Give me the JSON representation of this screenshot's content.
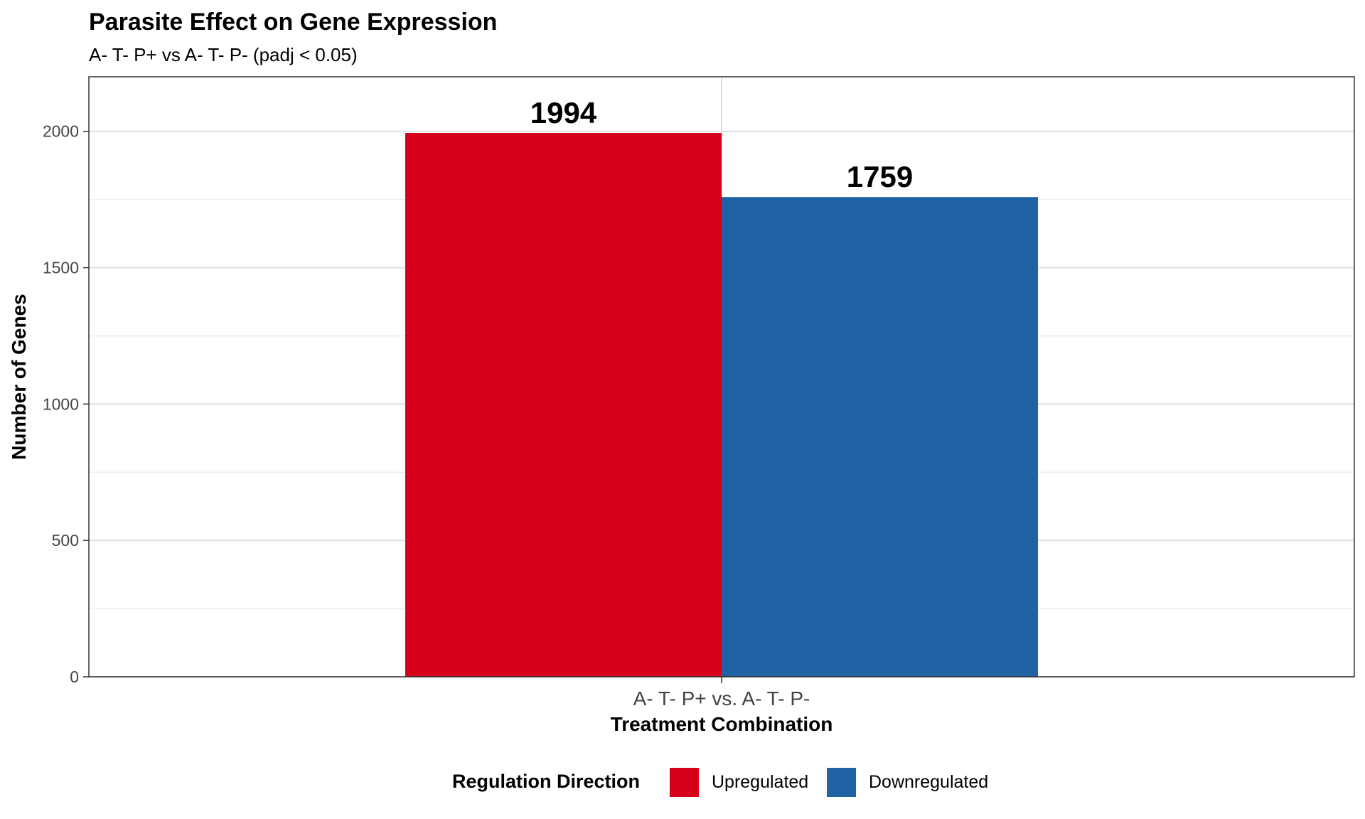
{
  "chart_data": {
    "type": "bar",
    "title": "Parasite Effect on Gene Expression",
    "subtitle": "A- T- P+ vs A- T- P- (padj < 0.05)",
    "xlabel": "Treatment Combination",
    "ylabel": "Number of Genes",
    "categories": [
      "A- T- P+ vs. A- T- P-"
    ],
    "series": [
      {
        "name": "Upregulated",
        "values": [
          1994
        ],
        "color": "#d7001a"
      },
      {
        "name": "Downregulated",
        "values": [
          1759
        ],
        "color": "#1f63a5"
      }
    ],
    "ylim": [
      0,
      2200
    ],
    "yticks": [
      0,
      500,
      1000,
      1500,
      2000
    ],
    "ytick_labels": [
      "0",
      "500",
      "1000",
      "1500",
      "2000"
    ],
    "grid": true,
    "legend": {
      "title": "Regulation Direction",
      "position": "bottom"
    }
  }
}
